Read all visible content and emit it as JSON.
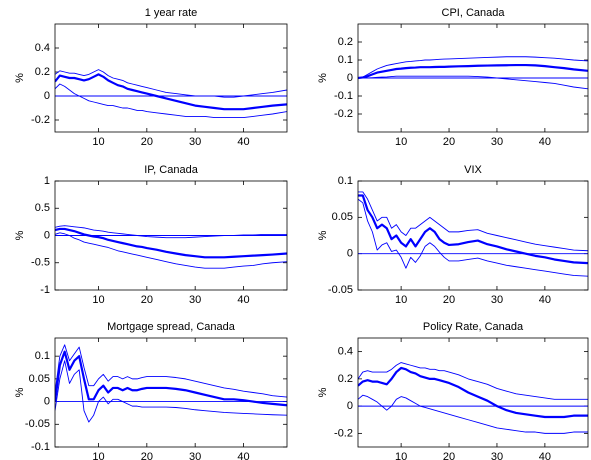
{
  "chart_data": [
    {
      "type": "line",
      "title": "1 year rate",
      "ylabel": "%",
      "xlim": [
        1,
        49
      ],
      "xticks": [
        10,
        20,
        30,
        40
      ],
      "ylim": [
        -0.3,
        0.6
      ],
      "yticks": [
        -0.2,
        0,
        0.2,
        0.4
      ],
      "hline": 0,
      "hline_color": "#0000ff",
      "x": [
        1,
        2,
        3,
        4,
        5,
        6,
        7,
        8,
        9,
        10,
        11,
        12,
        13,
        14,
        15,
        16,
        17,
        18,
        19,
        20,
        22,
        24,
        26,
        28,
        30,
        32,
        34,
        36,
        38,
        40,
        42,
        44,
        46,
        49
      ],
      "series": [
        {
          "color": "#0000ff",
          "line_width": 2.2,
          "values": [
            0.12,
            0.17,
            0.16,
            0.15,
            0.15,
            0.14,
            0.13,
            0.14,
            0.16,
            0.18,
            0.16,
            0.13,
            0.11,
            0.09,
            0.08,
            0.06,
            0.05,
            0.04,
            0.03,
            0.02,
            0,
            -0.02,
            -0.04,
            -0.06,
            -0.08,
            -0.09,
            -0.1,
            -0.11,
            -0.11,
            -0.11,
            -0.1,
            -0.09,
            -0.08,
            -0.07
          ]
        },
        {
          "color": "#0000ff",
          "line_width": 0.9,
          "values": [
            0.18,
            0.21,
            0.2,
            0.19,
            0.19,
            0.18,
            0.17,
            0.18,
            0.2,
            0.22,
            0.2,
            0.17,
            0.15,
            0.14,
            0.13,
            0.11,
            0.1,
            0.09,
            0.08,
            0.07,
            0.05,
            0.03,
            0.02,
            0.01,
            0,
            0,
            0,
            -0.01,
            -0.01,
            0,
            0.01,
            0.02,
            0.03,
            0.05
          ]
        },
        {
          "color": "#0000ff",
          "line_width": 0.9,
          "values": [
            0.06,
            0.1,
            0.08,
            0.05,
            0.02,
            0,
            -0.02,
            -0.04,
            -0.05,
            -0.06,
            -0.07,
            -0.08,
            -0.08,
            -0.09,
            -0.1,
            -0.1,
            -0.11,
            -0.12,
            -0.12,
            -0.13,
            -0.14,
            -0.15,
            -0.16,
            -0.17,
            -0.17,
            -0.17,
            -0.18,
            -0.18,
            -0.18,
            -0.18,
            -0.17,
            -0.16,
            -0.15,
            -0.13
          ]
        }
      ]
    },
    {
      "type": "line",
      "title": "CPI, Canada",
      "ylabel": "%",
      "xlim": [
        1,
        49
      ],
      "xticks": [
        10,
        20,
        30,
        40
      ],
      "ylim": [
        -0.3,
        0.3
      ],
      "yticks": [
        -0.2,
        -0.1,
        0,
        0.1,
        0.2
      ],
      "hline": 0,
      "hline_color": "#0000ff",
      "x": [
        1,
        2,
        3,
        4,
        5,
        6,
        7,
        8,
        9,
        10,
        11,
        12,
        13,
        14,
        15,
        16,
        17,
        18,
        19,
        20,
        22,
        24,
        26,
        28,
        30,
        32,
        34,
        36,
        38,
        40,
        42,
        44,
        46,
        49
      ],
      "series": [
        {
          "color": "#0000ff",
          "line_width": 2.2,
          "values": [
            0,
            0.003,
            0.01,
            0.02,
            0.03,
            0.035,
            0.04,
            0.045,
            0.05,
            0.052,
            0.055,
            0.057,
            0.058,
            0.06,
            0.06,
            0.06,
            0.061,
            0.062,
            0.062,
            0.063,
            0.065,
            0.066,
            0.068,
            0.069,
            0.07,
            0.071,
            0.072,
            0.072,
            0.07,
            0.066,
            0.06,
            0.055,
            0.048,
            0.04
          ]
        },
        {
          "color": "#0000ff",
          "line_width": 0.9,
          "values": [
            0,
            0.005,
            0.02,
            0.035,
            0.05,
            0.06,
            0.07,
            0.075,
            0.08,
            0.085,
            0.09,
            0.092,
            0.095,
            0.097,
            0.1,
            0.1,
            0.102,
            0.104,
            0.105,
            0.106,
            0.108,
            0.11,
            0.112,
            0.114,
            0.116,
            0.118,
            0.118,
            0.118,
            0.116,
            0.113,
            0.11,
            0.105,
            0.1,
            0.095
          ]
        },
        {
          "color": "#0000ff",
          "line_width": 0.9,
          "values": [
            0,
            0,
            0,
            0.002,
            0.004,
            0.005,
            0.006,
            0.008,
            0.01,
            0.01,
            0.01,
            0.01,
            0.01,
            0.01,
            0.01,
            0.01,
            0.01,
            0.01,
            0.01,
            0.01,
            0.01,
            0.01,
            0.008,
            0.005,
            0,
            -0.005,
            -0.01,
            -0.015,
            -0.02,
            -0.025,
            -0.03,
            -0.04,
            -0.05,
            -0.06
          ]
        }
      ]
    },
    {
      "type": "line",
      "title": "IP, Canada",
      "ylabel": "%",
      "xlim": [
        1,
        49
      ],
      "xticks": [
        10,
        20,
        30,
        40
      ],
      "ylim": [
        -1,
        1
      ],
      "yticks": [
        -1,
        -0.5,
        0,
        0.5,
        1
      ],
      "hline": 0,
      "hline_color": "#0000ff",
      "x": [
        1,
        2,
        3,
        4,
        5,
        6,
        7,
        8,
        9,
        10,
        11,
        12,
        13,
        14,
        15,
        16,
        17,
        18,
        19,
        20,
        22,
        24,
        26,
        28,
        30,
        32,
        34,
        36,
        38,
        40,
        42,
        44,
        46,
        49
      ],
      "series": [
        {
          "color": "#0000ff",
          "line_width": 2.2,
          "values": [
            0.1,
            0.12,
            0.12,
            0.1,
            0.08,
            0.05,
            0.02,
            0,
            -0.02,
            -0.03,
            -0.05,
            -0.08,
            -0.1,
            -0.12,
            -0.14,
            -0.16,
            -0.18,
            -0.2,
            -0.21,
            -0.23,
            -0.26,
            -0.3,
            -0.33,
            -0.36,
            -0.38,
            -0.4,
            -0.4,
            -0.4,
            -0.39,
            -0.38,
            -0.37,
            -0.36,
            -0.35,
            -0.33
          ]
        },
        {
          "color": "#0000ff",
          "line_width": 0.9,
          "values": [
            0.15,
            0.17,
            0.18,
            0.17,
            0.16,
            0.15,
            0.14,
            0.12,
            0.1,
            0.09,
            0.08,
            0.06,
            0.05,
            0.04,
            0.03,
            0.02,
            0.01,
            0,
            -0.01,
            -0.02,
            -0.03,
            -0.04,
            -0.04,
            -0.04,
            -0.03,
            -0.02,
            -0.01,
            0,
            0,
            0.01,
            0.01,
            0.02,
            0.02,
            0.02
          ]
        },
        {
          "color": "#0000ff",
          "line_width": 0.9,
          "values": [
            0.02,
            0.05,
            0.03,
            0,
            -0.05,
            -0.08,
            -0.12,
            -0.14,
            -0.16,
            -0.18,
            -0.2,
            -0.22,
            -0.25,
            -0.28,
            -0.3,
            -0.32,
            -0.34,
            -0.36,
            -0.38,
            -0.4,
            -0.44,
            -0.48,
            -0.52,
            -0.55,
            -0.58,
            -0.6,
            -0.6,
            -0.6,
            -0.58,
            -0.56,
            -0.55,
            -0.52,
            -0.5,
            -0.48
          ]
        }
      ]
    },
    {
      "type": "line",
      "title": "VIX",
      "ylabel": "%",
      "xlim": [
        1,
        49
      ],
      "xticks": [
        10,
        20,
        30,
        40
      ],
      "ylim": [
        -0.05,
        0.1
      ],
      "yticks": [
        -0.05,
        0,
        0.05,
        0.1
      ],
      "hline": 0,
      "hline_color": "#0000ff",
      "x": [
        1,
        2,
        3,
        4,
        5,
        6,
        7,
        8,
        9,
        10,
        11,
        12,
        13,
        14,
        15,
        16,
        17,
        18,
        19,
        20,
        22,
        24,
        26,
        28,
        30,
        32,
        34,
        36,
        38,
        40,
        42,
        44,
        46,
        49
      ],
      "series": [
        {
          "color": "#0000ff",
          "line_width": 2.2,
          "values": [
            0.08,
            0.08,
            0.06,
            0.05,
            0.035,
            0.04,
            0.035,
            0.02,
            0.025,
            0.015,
            0.01,
            0.02,
            0.01,
            0.02,
            0.03,
            0.035,
            0.03,
            0.02,
            0.015,
            0.012,
            0.013,
            0.016,
            0.018,
            0.013,
            0.01,
            0.006,
            0.003,
            0,
            -0.003,
            -0.005,
            -0.008,
            -0.01,
            -0.012,
            -0.013
          ]
        },
        {
          "color": "#0000ff",
          "line_width": 0.9,
          "values": [
            0.085,
            0.085,
            0.075,
            0.06,
            0.045,
            0.05,
            0.05,
            0.035,
            0.04,
            0.03,
            0.025,
            0.035,
            0.035,
            0.04,
            0.045,
            0.05,
            0.045,
            0.04,
            0.035,
            0.03,
            0.03,
            0.032,
            0.033,
            0.028,
            0.025,
            0.022,
            0.019,
            0.016,
            0.013,
            0.011,
            0.009,
            0.007,
            0.005,
            0.004
          ]
        },
        {
          "color": "#0000ff",
          "line_width": 0.9,
          "values": [
            0.075,
            0.07,
            0.045,
            0.03,
            0.005,
            0.012,
            0.015,
            0.003,
            0.005,
            -0.005,
            -0.02,
            -0.005,
            -0.012,
            -0.003,
            0.01,
            0.015,
            0.01,
            0.002,
            -0.005,
            -0.01,
            -0.01,
            -0.008,
            -0.006,
            -0.01,
            -0.013,
            -0.016,
            -0.018,
            -0.02,
            -0.022,
            -0.024,
            -0.026,
            -0.028,
            -0.03,
            -0.031
          ]
        }
      ]
    },
    {
      "type": "line",
      "title": "Mortgage spread, Canada",
      "ylabel": "%",
      "xlim": [
        1,
        49
      ],
      "xticks": [
        10,
        20,
        30,
        40
      ],
      "ylim": [
        -0.1,
        0.14
      ],
      "yticks": [
        -0.1,
        -0.05,
        0,
        0.05,
        0.1
      ],
      "hline": 0,
      "hline_color": "#0000ff",
      "x": [
        1,
        2,
        3,
        4,
        5,
        6,
        7,
        8,
        9,
        10,
        11,
        12,
        13,
        14,
        15,
        16,
        17,
        18,
        19,
        20,
        22,
        24,
        26,
        28,
        30,
        32,
        34,
        36,
        38,
        40,
        42,
        44,
        46,
        49
      ],
      "series": [
        {
          "color": "#0000ff",
          "line_width": 2.2,
          "values": [
            0,
            0.08,
            0.11,
            0.07,
            0.09,
            0.1,
            0.05,
            0.005,
            0.005,
            0.025,
            0.035,
            0.02,
            0.03,
            0.03,
            0.025,
            0.03,
            0.025,
            0.025,
            0.028,
            0.03,
            0.03,
            0.03,
            0.028,
            0.025,
            0.02,
            0.015,
            0.01,
            0.005,
            0.005,
            0.003,
            0,
            -0.003,
            -0.005,
            -0.008
          ]
        },
        {
          "color": "#0000ff",
          "line_width": 0.9,
          "values": [
            0.02,
            0.1,
            0.125,
            0.09,
            0.105,
            0.12,
            0.075,
            0.035,
            0.035,
            0.05,
            0.06,
            0.045,
            0.055,
            0.055,
            0.05,
            0.055,
            0.05,
            0.05,
            0.053,
            0.055,
            0.055,
            0.055,
            0.053,
            0.05,
            0.045,
            0.04,
            0.035,
            0.03,
            0.027,
            0.023,
            0.02,
            0.017,
            0.013,
            0.01
          ]
        },
        {
          "color": "#0000ff",
          "line_width": 0.9,
          "values": [
            -0.02,
            0.05,
            0.09,
            0.04,
            0.06,
            0.07,
            -0.02,
            -0.045,
            -0.03,
            0,
            0.01,
            -0.005,
            0.005,
            0.005,
            0,
            -0.005,
            -0.01,
            -0.01,
            -0.012,
            -0.012,
            -0.012,
            -0.012,
            -0.013,
            -0.015,
            -0.018,
            -0.02,
            -0.022,
            -0.024,
            -0.025,
            -0.026,
            -0.027,
            -0.028,
            -0.029,
            -0.03
          ]
        }
      ]
    },
    {
      "type": "line",
      "title": "Policy Rate, Canada",
      "ylabel": "%",
      "xlim": [
        1,
        49
      ],
      "xticks": [
        10,
        20,
        30,
        40
      ],
      "ylim": [
        -0.3,
        0.5
      ],
      "yticks": [
        -0.2,
        0,
        0.2,
        0.4
      ],
      "hline": 0,
      "hline_color": "#0000ff",
      "x": [
        1,
        2,
        3,
        4,
        5,
        6,
        7,
        8,
        9,
        10,
        11,
        12,
        13,
        14,
        15,
        16,
        17,
        18,
        19,
        20,
        22,
        24,
        26,
        28,
        30,
        32,
        34,
        36,
        38,
        40,
        42,
        44,
        46,
        49
      ],
      "series": [
        {
          "color": "#0000ff",
          "line_width": 2.2,
          "values": [
            0.15,
            0.18,
            0.19,
            0.18,
            0.18,
            0.17,
            0.16,
            0.2,
            0.25,
            0.28,
            0.27,
            0.25,
            0.24,
            0.22,
            0.21,
            0.2,
            0.2,
            0.19,
            0.18,
            0.17,
            0.14,
            0.1,
            0.07,
            0.04,
            0,
            -0.03,
            -0.05,
            -0.06,
            -0.07,
            -0.08,
            -0.08,
            -0.08,
            -0.07,
            -0.07
          ]
        },
        {
          "color": "#0000ff",
          "line_width": 0.9,
          "values": [
            0.2,
            0.25,
            0.26,
            0.25,
            0.25,
            0.25,
            0.25,
            0.27,
            0.3,
            0.32,
            0.31,
            0.3,
            0.29,
            0.28,
            0.28,
            0.27,
            0.27,
            0.26,
            0.26,
            0.25,
            0.23,
            0.2,
            0.18,
            0.16,
            0.13,
            0.11,
            0.09,
            0.08,
            0.07,
            0.06,
            0.05,
            0.05,
            0.05,
            0.05
          ]
        },
        {
          "color": "#0000ff",
          "line_width": 0.9,
          "values": [
            0.05,
            0.08,
            0.07,
            0.05,
            0.03,
            0,
            -0.03,
            0,
            0.05,
            0.07,
            0.06,
            0.04,
            0.02,
            0,
            -0.01,
            -0.02,
            -0.03,
            -0.04,
            -0.05,
            -0.06,
            -0.08,
            -0.1,
            -0.12,
            -0.14,
            -0.16,
            -0.17,
            -0.18,
            -0.19,
            -0.19,
            -0.2,
            -0.2,
            -0.2,
            -0.19,
            -0.19
          ]
        }
      ]
    }
  ]
}
